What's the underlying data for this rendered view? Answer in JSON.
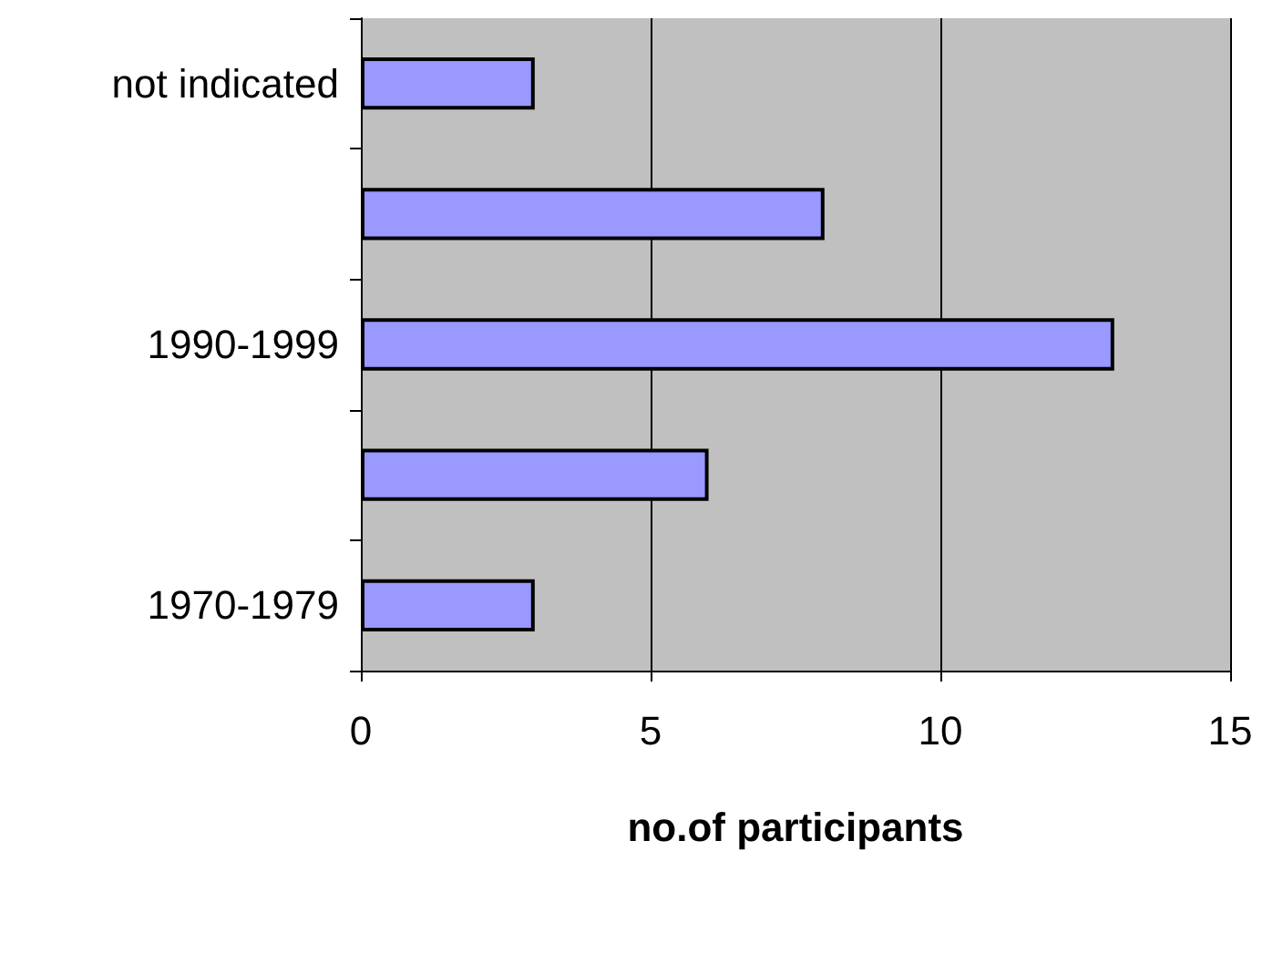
{
  "chart_data": {
    "type": "bar",
    "orientation": "horizontal",
    "xlabel": "no.of participants",
    "categories": [
      "not indicated",
      null,
      "1990-1999",
      null,
      "1970-1979"
    ],
    "values": [
      3,
      8,
      13,
      6,
      3
    ],
    "color": "#9999ff",
    "xlim": [
      0,
      15
    ],
    "xticks": [
      0,
      5,
      10,
      15
    ],
    "grid": "x"
  }
}
